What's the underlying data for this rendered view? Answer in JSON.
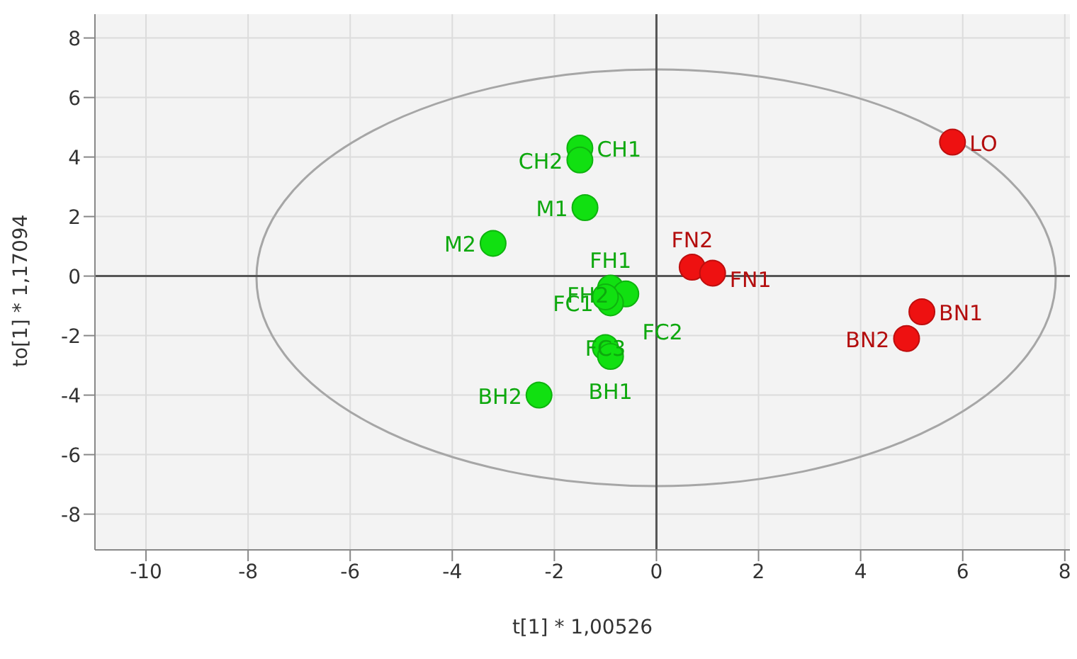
{
  "chart_data": {
    "type": "scatter",
    "xlabel": "t[1] * 1,00526",
    "ylabel": "to[1] * 1,17094",
    "xlim": [
      -11,
      8.1
    ],
    "ylim": [
      -9.2,
      8.8
    ],
    "xticks": [
      -10,
      -8,
      -6,
      -4,
      -2,
      0,
      2,
      4,
      6,
      8
    ],
    "yticks": [
      -8,
      -6,
      -4,
      -2,
      0,
      2,
      4,
      6,
      8
    ],
    "grid": true,
    "marker": "circle",
    "series": [
      {
        "color": "#11e011",
        "x": [
          -1.5,
          -1.5,
          -1.4,
          -3.2,
          -0.9,
          -0.6,
          -0.9,
          -1.0,
          -1.0,
          -0.9,
          -2.3
        ],
        "values": [
          4.3,
          3.9,
          2.3,
          1.1,
          -0.4,
          -0.6,
          -0.9,
          -0.7,
          -2.4,
          -2.7,
          -4.0
        ],
        "value_labels": [
          "CH1",
          "CH2",
          "M1",
          "M2",
          "FH1",
          "FH2",
          "FC1",
          "FC2",
          "FC3",
          "BH1",
          "BH2"
        ]
      },
      {
        "color": "#ee1111",
        "x": [
          5.8,
          0.7,
          1.1,
          5.2,
          4.9
        ],
        "values": [
          4.5,
          0.3,
          0.1,
          -1.2,
          -2.1
        ],
        "value_labels": [
          "LO",
          "FN2",
          "FN1",
          "BN1",
          "BN2"
        ]
      }
    ]
  }
}
